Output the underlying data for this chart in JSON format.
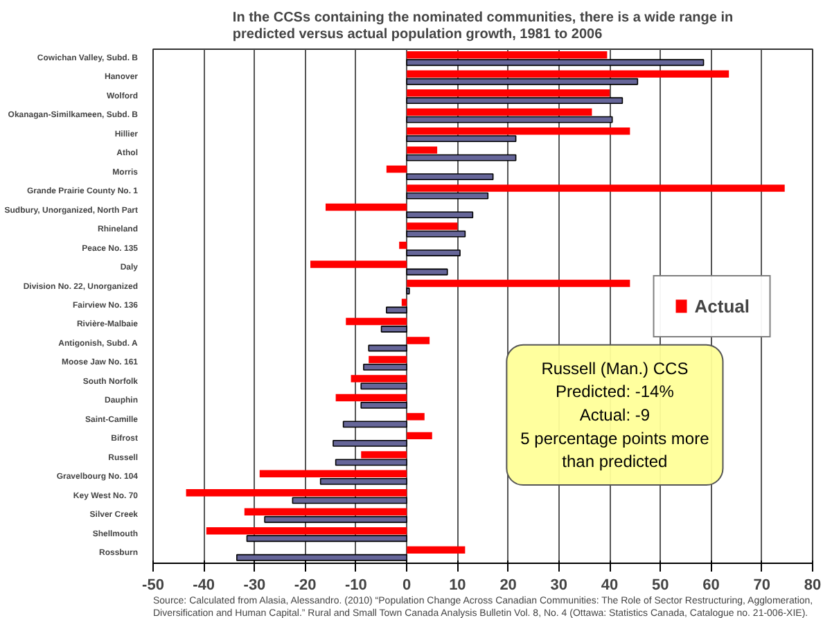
{
  "chart_data": {
    "type": "bar",
    "orientation": "horizontal",
    "title": "In the CCSs containing the nominated communities, there is a wide range in predicted versus actual population growth, 1981 to 2006",
    "categories": [
      "Cowichan Valley, Subd. B",
      "Hanover",
      "Wolford",
      "Okanagan-Similkameen, Subd. B",
      "Hillier",
      "Athol",
      "Morris",
      "Grande Prairie County No. 1",
      "Sudbury, Unorganized, North Part",
      "Rhineland",
      "Peace No. 135",
      "Daly",
      "Division No. 22, Unorganized",
      "Fairview No. 136",
      "Rivière-Malbaie",
      "Antigonish, Subd. A",
      "Moose Jaw No. 161",
      "South Norfolk",
      "Dauphin",
      "Saint-Camille",
      "Bifrost",
      "Russell",
      "Gravelbourg No. 104",
      "Key West No. 70",
      "Silver Creek",
      "Shellmouth",
      "Rossburn"
    ],
    "series": [
      {
        "name": "Actual",
        "color": "#ff0000",
        "values": [
          39.5,
          63.5,
          40,
          36.5,
          44,
          6,
          -4,
          74.5,
          -16,
          10,
          -1.5,
          -19,
          44,
          -1,
          -12,
          4.5,
          -7.5,
          -11,
          -14,
          3.5,
          5,
          -9,
          -29,
          -43.5,
          -32,
          -39.5,
          11.5
        ]
      },
      {
        "color": "#666699",
        "values": [
          58.5,
          45.5,
          42.5,
          40.5,
          21.5,
          21.5,
          17,
          16,
          13,
          11.5,
          10.5,
          8,
          0.5,
          -4,
          -5,
          -7.5,
          -8.5,
          -9,
          -9,
          -12.5,
          -14.5,
          -14,
          -17,
          -22.5,
          -28,
          -31.5,
          -33.5
        ]
      }
    ],
    "xlim": [
      -50,
      80
    ],
    "xticks": [
      -50,
      -40,
      -30,
      -20,
      -10,
      0,
      10,
      20,
      30,
      40,
      50,
      60,
      70,
      80
    ],
    "grid": "x",
    "legend": "right",
    "annotations": [
      "Russell (Man.) CCS\nPredicted: -14%\nActual: -9\n5 percentage points more\nthan predicted",
      "Source: Calculated from Alasia, Alessandro. (2010) “Population Change Across Canadian Communities: The Role of Sector Restructuring, Agglomeration, Diversification and Human Capital.” Rural and Small Town Canada Analysis Bulletin Vol. 8, No. 4 (Ottawa: Statistics Canada, Catalogue no. 21-006-XIE)."
    ]
  }
}
